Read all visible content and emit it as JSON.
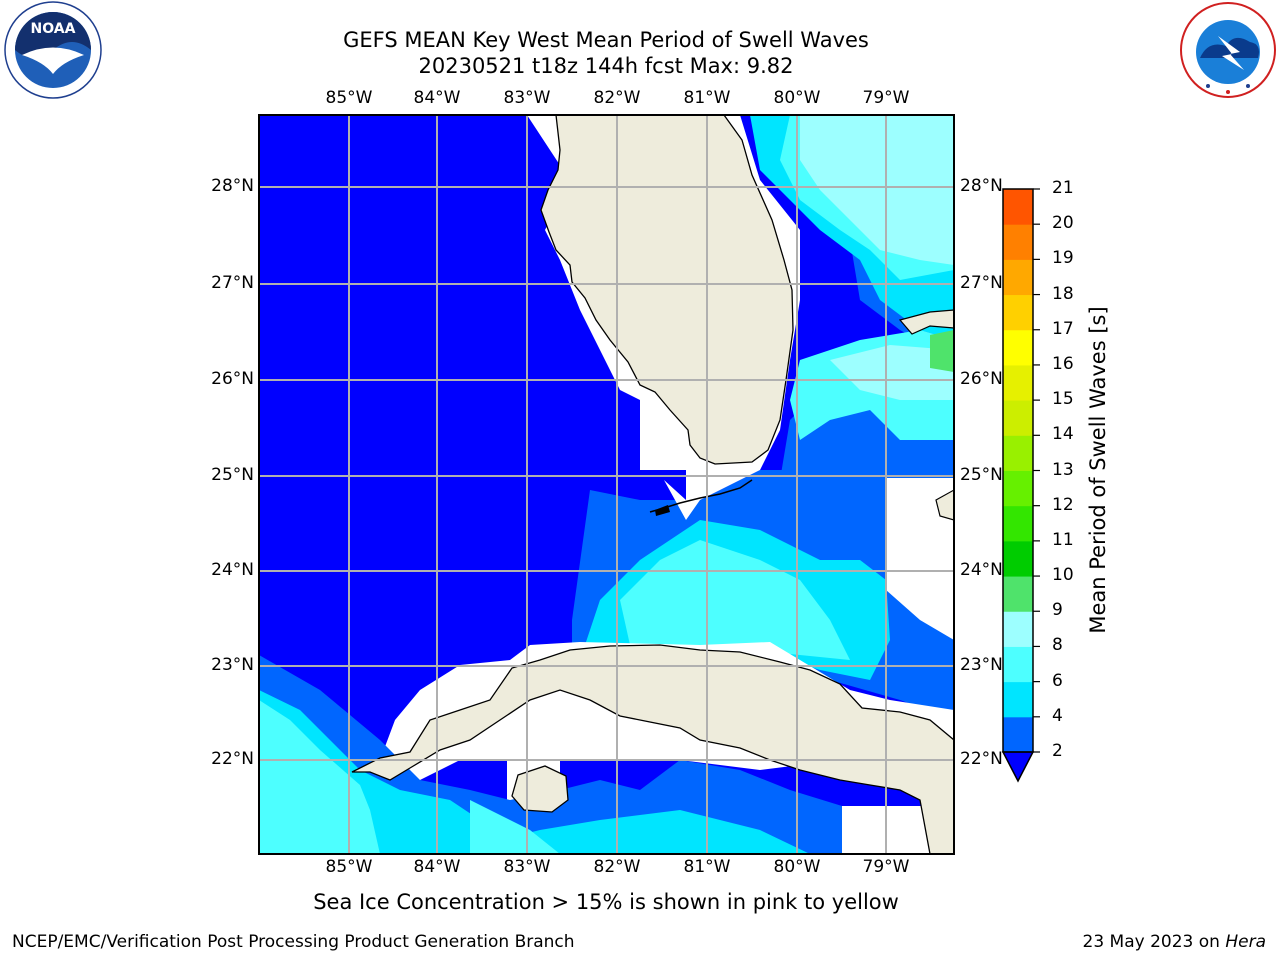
{
  "title": {
    "line1": "GEFS MEAN Key West Mean Period of Swell Waves",
    "line2": "20230521 t18z 144h fcst   Max: 9.82"
  },
  "map": {
    "lon_ticks": [
      "85°W",
      "84°W",
      "83°W",
      "82°W",
      "81°W",
      "80°W",
      "79°W"
    ],
    "lat_ticks": [
      "28°N",
      "27°N",
      "26°N",
      "25°N",
      "24°N",
      "23°N",
      "22°N"
    ],
    "lon_range": [
      -86,
      -78.3
    ],
    "lat_range": [
      21,
      28.8
    ],
    "colors": {
      "land": "#eeecdc",
      "no_data": "#ffffff",
      "grid": "#b0b0b0"
    }
  },
  "colorbar": {
    "label": "Mean Period of Swell Waves [s]",
    "ticks": [
      "21",
      "20",
      "19",
      "18",
      "17",
      "16",
      "15",
      "14",
      "13",
      "12",
      "11",
      "10",
      "9",
      "8",
      "6",
      "4",
      "2"
    ],
    "levels": [
      2,
      4,
      6,
      8,
      9,
      10,
      11,
      12,
      13,
      14,
      15,
      16,
      17,
      18,
      19,
      20,
      21
    ],
    "colors": [
      "#0066ff",
      "#00e5ff",
      "#4dffff",
      "#9dffff",
      "#4fe36b",
      "#00cc00",
      "#33e600",
      "#66f000",
      "#99f000",
      "#ccee00",
      "#e6f000",
      "#ffff00",
      "#ffd000",
      "#ffa800",
      "#ff8000",
      "#ff5500",
      "#ff2a00",
      "#ff0000"
    ],
    "under_color": "#0000ff"
  },
  "footnote": "Sea Ice Concentration > 15% is shown in pink to yellow",
  "footer": {
    "left": "NCEP/EMC/Verification Post Processing Product Generation Branch",
    "right_date": "23 May 2023 on ",
    "right_host": "Hera"
  },
  "logos": {
    "left": "noaa-logo",
    "right": "national-weather-service-logo"
  }
}
